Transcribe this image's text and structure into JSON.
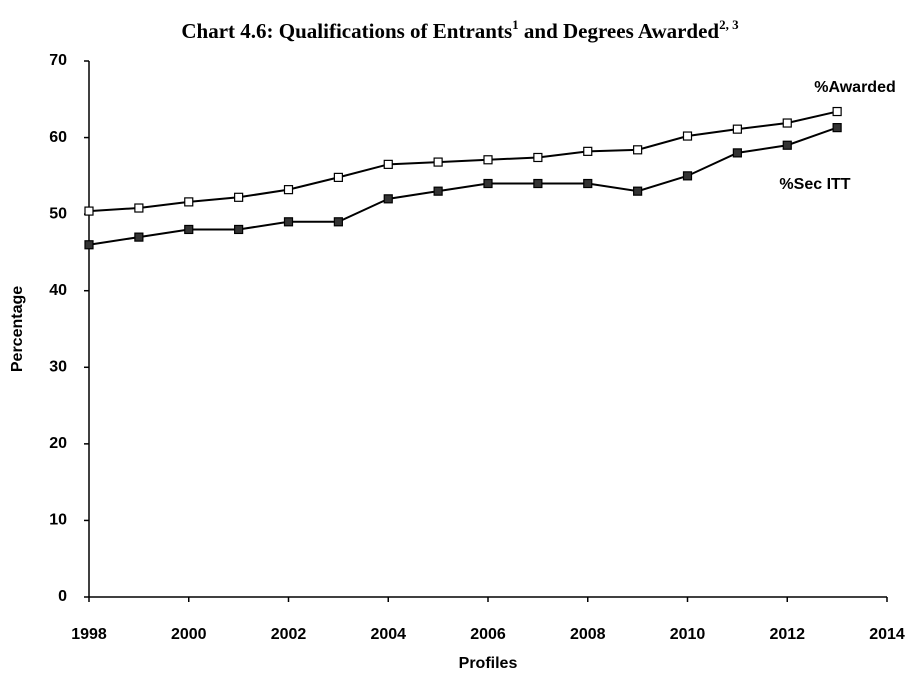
{
  "chart_data": {
    "type": "line",
    "title": [
      "Chart 4.6: Qualifications of Entrants",
      "1",
      " and Degrees Awarded",
      "2, 3"
    ],
    "x_label": "Profiles",
    "y_label": "Percentage",
    "x": [
      1998,
      1999,
      2000,
      2001,
      2002,
      2003,
      2004,
      2005,
      2006,
      2007,
      2008,
      2009,
      2010,
      2011,
      2012,
      2013
    ],
    "series": [
      {
        "name": "%Awarded",
        "color": "#000000",
        "marker_fill": "#ffffff",
        "values": [
          50.4,
          50.8,
          51.6,
          52.2,
          53.2,
          54.8,
          56.5,
          56.8,
          57.1,
          57.4,
          58.2,
          58.4,
          60.2,
          61.1,
          61.9,
          63.4
        ]
      },
      {
        "name": "%Sec ITT",
        "color": "#000000",
        "marker_fill": "#333333",
        "values": [
          46,
          47,
          48,
          48,
          49,
          49,
          52,
          53,
          54,
          54,
          54,
          53,
          55,
          58,
          59,
          61.3
        ]
      }
    ],
    "xlim": [
      1998,
      2014
    ],
    "xticks": [
      1998,
      2000,
      2002,
      2004,
      2006,
      2008,
      2010,
      2012,
      2014
    ],
    "ylim": [
      0,
      70
    ],
    "yticks": [
      0,
      10,
      20,
      30,
      40,
      50,
      60,
      70
    ],
    "grid": false
  }
}
